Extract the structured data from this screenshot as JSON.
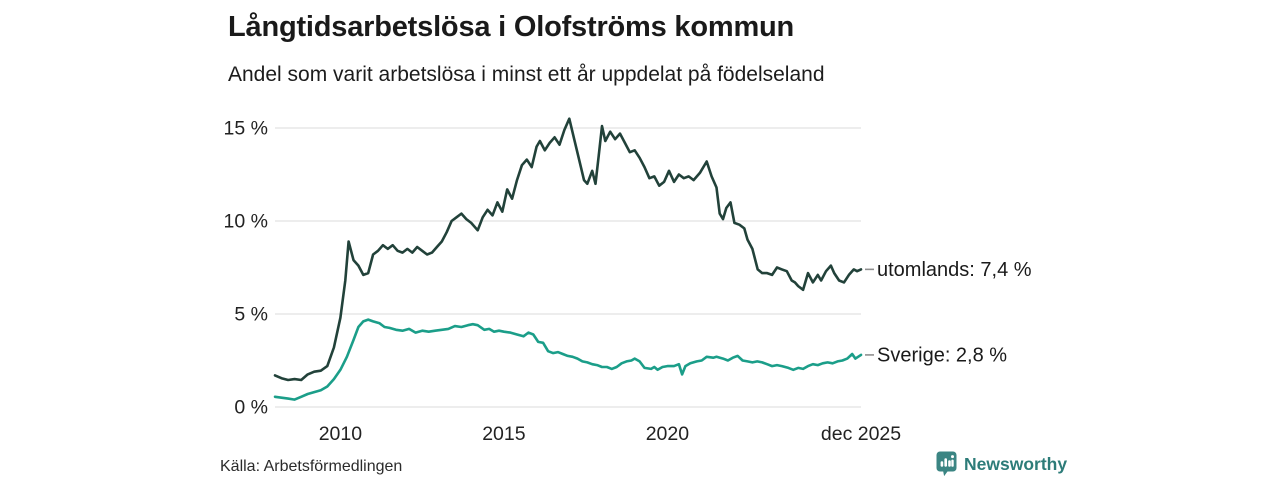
{
  "header": {
    "title": "Långtidsarbetslösa i Olofströms kommun",
    "subtitle": "Andel som varit arbetslösa i minst ett år uppdelat på födelseland"
  },
  "footer": {
    "source": "Källa: Arbetsförmedlingen",
    "brand": "Newsworthy"
  },
  "colors": {
    "foreign_born_line": "#22423a",
    "sweden_line": "#1b9e89",
    "gridline": "#e2e2e2",
    "axis_text": "#222222",
    "legend_text": "#1a1a1a",
    "legend_dash": "#8f8f8f",
    "brand_teal": "#3b8583",
    "brand_text": "#2d7c79"
  },
  "chart_data": {
    "type": "line",
    "title": "Långtidsarbetslösa i Olofströms kommun",
    "subtitle": "Andel som varit arbetslösa i minst ett år uppdelat på födelseland",
    "xlabel": "",
    "ylabel": "",
    "unit": "%",
    "grid": true,
    "legend_position": "right-of-line-end",
    "x_domain": [
      2008.0,
      2025.92
    ],
    "y_domain": [
      0,
      16.2
    ],
    "y_ticks": [
      {
        "value": 0,
        "label": "0 %"
      },
      {
        "value": 5,
        "label": "5 %"
      },
      {
        "value": 10,
        "label": "10 %"
      },
      {
        "value": 15,
        "label": "15 %"
      }
    ],
    "x_ticks": [
      {
        "value": 2010,
        "label": "2010"
      },
      {
        "value": 2015,
        "label": "2015"
      },
      {
        "value": 2020,
        "label": "2020"
      },
      {
        "value": 2025.92,
        "label": "dec 2025"
      }
    ],
    "series": [
      {
        "name": "utomlands",
        "label": "utomlands: 7,4 %",
        "last_value_label": "7,4 %",
        "color": "#22423a",
        "points": [
          [
            2008.0,
            1.7
          ],
          [
            2008.2,
            1.55
          ],
          [
            2008.4,
            1.45
          ],
          [
            2008.6,
            1.5
          ],
          [
            2008.8,
            1.45
          ],
          [
            2009.0,
            1.75
          ],
          [
            2009.2,
            1.9
          ],
          [
            2009.4,
            1.95
          ],
          [
            2009.6,
            2.2
          ],
          [
            2009.8,
            3.2
          ],
          [
            2010.0,
            4.8
          ],
          [
            2010.15,
            6.8
          ],
          [
            2010.25,
            8.9
          ],
          [
            2010.4,
            7.9
          ],
          [
            2010.55,
            7.6
          ],
          [
            2010.7,
            7.1
          ],
          [
            2010.85,
            7.2
          ],
          [
            2011.0,
            8.2
          ],
          [
            2011.15,
            8.4
          ],
          [
            2011.3,
            8.7
          ],
          [
            2011.45,
            8.5
          ],
          [
            2011.6,
            8.7
          ],
          [
            2011.75,
            8.4
          ],
          [
            2011.9,
            8.3
          ],
          [
            2012.05,
            8.5
          ],
          [
            2012.2,
            8.3
          ],
          [
            2012.35,
            8.6
          ],
          [
            2012.5,
            8.4
          ],
          [
            2012.65,
            8.2
          ],
          [
            2012.8,
            8.3
          ],
          [
            2012.95,
            8.6
          ],
          [
            2013.1,
            8.9
          ],
          [
            2013.25,
            9.4
          ],
          [
            2013.4,
            10.0
          ],
          [
            2013.55,
            10.2
          ],
          [
            2013.7,
            10.4
          ],
          [
            2013.85,
            10.1
          ],
          [
            2014.0,
            9.9
          ],
          [
            2014.2,
            9.5
          ],
          [
            2014.35,
            10.2
          ],
          [
            2014.5,
            10.6
          ],
          [
            2014.65,
            10.3
          ],
          [
            2014.8,
            11.0
          ],
          [
            2014.95,
            10.5
          ],
          [
            2015.1,
            11.7
          ],
          [
            2015.25,
            11.2
          ],
          [
            2015.4,
            12.2
          ],
          [
            2015.55,
            13.0
          ],
          [
            2015.7,
            13.3
          ],
          [
            2015.85,
            12.9
          ],
          [
            2016.0,
            14.0
          ],
          [
            2016.1,
            14.3
          ],
          [
            2016.25,
            13.8
          ],
          [
            2016.4,
            14.2
          ],
          [
            2016.55,
            14.5
          ],
          [
            2016.7,
            14.1
          ],
          [
            2016.85,
            14.9
          ],
          [
            2017.0,
            15.5
          ],
          [
            2017.15,
            14.4
          ],
          [
            2017.3,
            13.3
          ],
          [
            2017.45,
            12.2
          ],
          [
            2017.55,
            12.0
          ],
          [
            2017.7,
            12.7
          ],
          [
            2017.8,
            12.0
          ],
          [
            2017.9,
            13.5
          ],
          [
            2018.0,
            15.1
          ],
          [
            2018.1,
            14.3
          ],
          [
            2018.25,
            14.8
          ],
          [
            2018.4,
            14.4
          ],
          [
            2018.55,
            14.7
          ],
          [
            2018.7,
            14.2
          ],
          [
            2018.85,
            13.7
          ],
          [
            2019.0,
            13.8
          ],
          [
            2019.15,
            13.4
          ],
          [
            2019.3,
            12.9
          ],
          [
            2019.45,
            12.3
          ],
          [
            2019.6,
            12.4
          ],
          [
            2019.75,
            11.9
          ],
          [
            2019.9,
            12.1
          ],
          [
            2020.05,
            12.7
          ],
          [
            2020.2,
            12.1
          ],
          [
            2020.35,
            12.5
          ],
          [
            2020.5,
            12.3
          ],
          [
            2020.65,
            12.4
          ],
          [
            2020.8,
            12.2
          ],
          [
            2021.0,
            12.6
          ],
          [
            2021.2,
            13.2
          ],
          [
            2021.35,
            12.4
          ],
          [
            2021.5,
            11.8
          ],
          [
            2021.6,
            10.4
          ],
          [
            2021.7,
            10.1
          ],
          [
            2021.8,
            10.7
          ],
          [
            2021.93,
            11.0
          ],
          [
            2022.05,
            9.9
          ],
          [
            2022.2,
            9.8
          ],
          [
            2022.35,
            9.6
          ],
          [
            2022.45,
            9.0
          ],
          [
            2022.6,
            8.5
          ],
          [
            2022.76,
            7.4
          ],
          [
            2022.9,
            7.2
          ],
          [
            2023.05,
            7.2
          ],
          [
            2023.2,
            7.1
          ],
          [
            2023.35,
            7.5
          ],
          [
            2023.5,
            7.4
          ],
          [
            2023.65,
            7.3
          ],
          [
            2023.8,
            6.8
          ],
          [
            2023.9,
            6.7
          ],
          [
            2024.0,
            6.5
          ],
          [
            2024.15,
            6.3
          ],
          [
            2024.3,
            7.2
          ],
          [
            2024.45,
            6.7
          ],
          [
            2024.6,
            7.1
          ],
          [
            2024.7,
            6.8
          ],
          [
            2024.85,
            7.3
          ],
          [
            2025.0,
            7.6
          ],
          [
            2025.1,
            7.2
          ],
          [
            2025.25,
            6.8
          ],
          [
            2025.4,
            6.7
          ],
          [
            2025.55,
            7.1
          ],
          [
            2025.7,
            7.4
          ],
          [
            2025.8,
            7.3
          ],
          [
            2025.92,
            7.4
          ]
        ]
      },
      {
        "name": "sverige",
        "label": "Sverige: 2,8 %",
        "last_value_label": "2,8 %",
        "color": "#1b9e89",
        "points": [
          [
            2008.0,
            0.55
          ],
          [
            2008.2,
            0.5
          ],
          [
            2008.4,
            0.45
          ],
          [
            2008.6,
            0.4
          ],
          [
            2008.8,
            0.55
          ],
          [
            2009.0,
            0.7
          ],
          [
            2009.2,
            0.8
          ],
          [
            2009.4,
            0.9
          ],
          [
            2009.6,
            1.1
          ],
          [
            2009.8,
            1.5
          ],
          [
            2010.0,
            2.0
          ],
          [
            2010.2,
            2.7
          ],
          [
            2010.4,
            3.6
          ],
          [
            2010.55,
            4.3
          ],
          [
            2010.7,
            4.6
          ],
          [
            2010.85,
            4.7
          ],
          [
            2011.0,
            4.6
          ],
          [
            2011.2,
            4.5
          ],
          [
            2011.35,
            4.3
          ],
          [
            2011.5,
            4.25
          ],
          [
            2011.7,
            4.15
          ],
          [
            2011.9,
            4.1
          ],
          [
            2012.1,
            4.2
          ],
          [
            2012.3,
            4.0
          ],
          [
            2012.5,
            4.1
          ],
          [
            2012.7,
            4.05
          ],
          [
            2012.9,
            4.1
          ],
          [
            2013.1,
            4.15
          ],
          [
            2013.3,
            4.2
          ],
          [
            2013.5,
            4.35
          ],
          [
            2013.7,
            4.3
          ],
          [
            2013.9,
            4.4
          ],
          [
            2014.05,
            4.45
          ],
          [
            2014.2,
            4.4
          ],
          [
            2014.4,
            4.15
          ],
          [
            2014.55,
            4.2
          ],
          [
            2014.7,
            4.05
          ],
          [
            2014.85,
            4.1
          ],
          [
            2015.0,
            4.05
          ],
          [
            2015.2,
            4.0
          ],
          [
            2015.4,
            3.9
          ],
          [
            2015.6,
            3.8
          ],
          [
            2015.75,
            4.0
          ],
          [
            2015.9,
            3.9
          ],
          [
            2016.05,
            3.5
          ],
          [
            2016.2,
            3.45
          ],
          [
            2016.35,
            3.0
          ],
          [
            2016.5,
            2.9
          ],
          [
            2016.65,
            2.95
          ],
          [
            2016.8,
            2.85
          ],
          [
            2016.95,
            2.75
          ],
          [
            2017.1,
            2.7
          ],
          [
            2017.25,
            2.6
          ],
          [
            2017.4,
            2.45
          ],
          [
            2017.55,
            2.4
          ],
          [
            2017.7,
            2.3
          ],
          [
            2017.85,
            2.25
          ],
          [
            2018.0,
            2.15
          ],
          [
            2018.15,
            2.15
          ],
          [
            2018.3,
            2.05
          ],
          [
            2018.45,
            2.15
          ],
          [
            2018.6,
            2.35
          ],
          [
            2018.75,
            2.45
          ],
          [
            2018.9,
            2.5
          ],
          [
            2019.0,
            2.6
          ],
          [
            2019.15,
            2.45
          ],
          [
            2019.3,
            2.1
          ],
          [
            2019.5,
            2.05
          ],
          [
            2019.6,
            2.15
          ],
          [
            2019.7,
            2.0
          ],
          [
            2019.85,
            2.15
          ],
          [
            2020.0,
            2.2
          ],
          [
            2020.2,
            2.2
          ],
          [
            2020.35,
            2.3
          ],
          [
            2020.45,
            1.75
          ],
          [
            2020.55,
            2.2
          ],
          [
            2020.7,
            2.35
          ],
          [
            2020.9,
            2.45
          ],
          [
            2021.05,
            2.5
          ],
          [
            2021.2,
            2.7
          ],
          [
            2021.4,
            2.65
          ],
          [
            2021.5,
            2.7
          ],
          [
            2021.7,
            2.6
          ],
          [
            2021.85,
            2.5
          ],
          [
            2022.0,
            2.65
          ],
          [
            2022.15,
            2.75
          ],
          [
            2022.3,
            2.5
          ],
          [
            2022.45,
            2.45
          ],
          [
            2022.6,
            2.4
          ],
          [
            2022.75,
            2.45
          ],
          [
            2022.9,
            2.4
          ],
          [
            2023.05,
            2.3
          ],
          [
            2023.2,
            2.2
          ],
          [
            2023.35,
            2.25
          ],
          [
            2023.5,
            2.2
          ],
          [
            2023.7,
            2.1
          ],
          [
            2023.85,
            2.0
          ],
          [
            2024.0,
            2.1
          ],
          [
            2024.15,
            2.05
          ],
          [
            2024.3,
            2.2
          ],
          [
            2024.45,
            2.3
          ],
          [
            2024.6,
            2.25
          ],
          [
            2024.75,
            2.35
          ],
          [
            2024.9,
            2.4
          ],
          [
            2025.05,
            2.35
          ],
          [
            2025.2,
            2.45
          ],
          [
            2025.35,
            2.5
          ],
          [
            2025.5,
            2.6
          ],
          [
            2025.65,
            2.85
          ],
          [
            2025.75,
            2.6
          ],
          [
            2025.92,
            2.8
          ]
        ]
      }
    ]
  }
}
